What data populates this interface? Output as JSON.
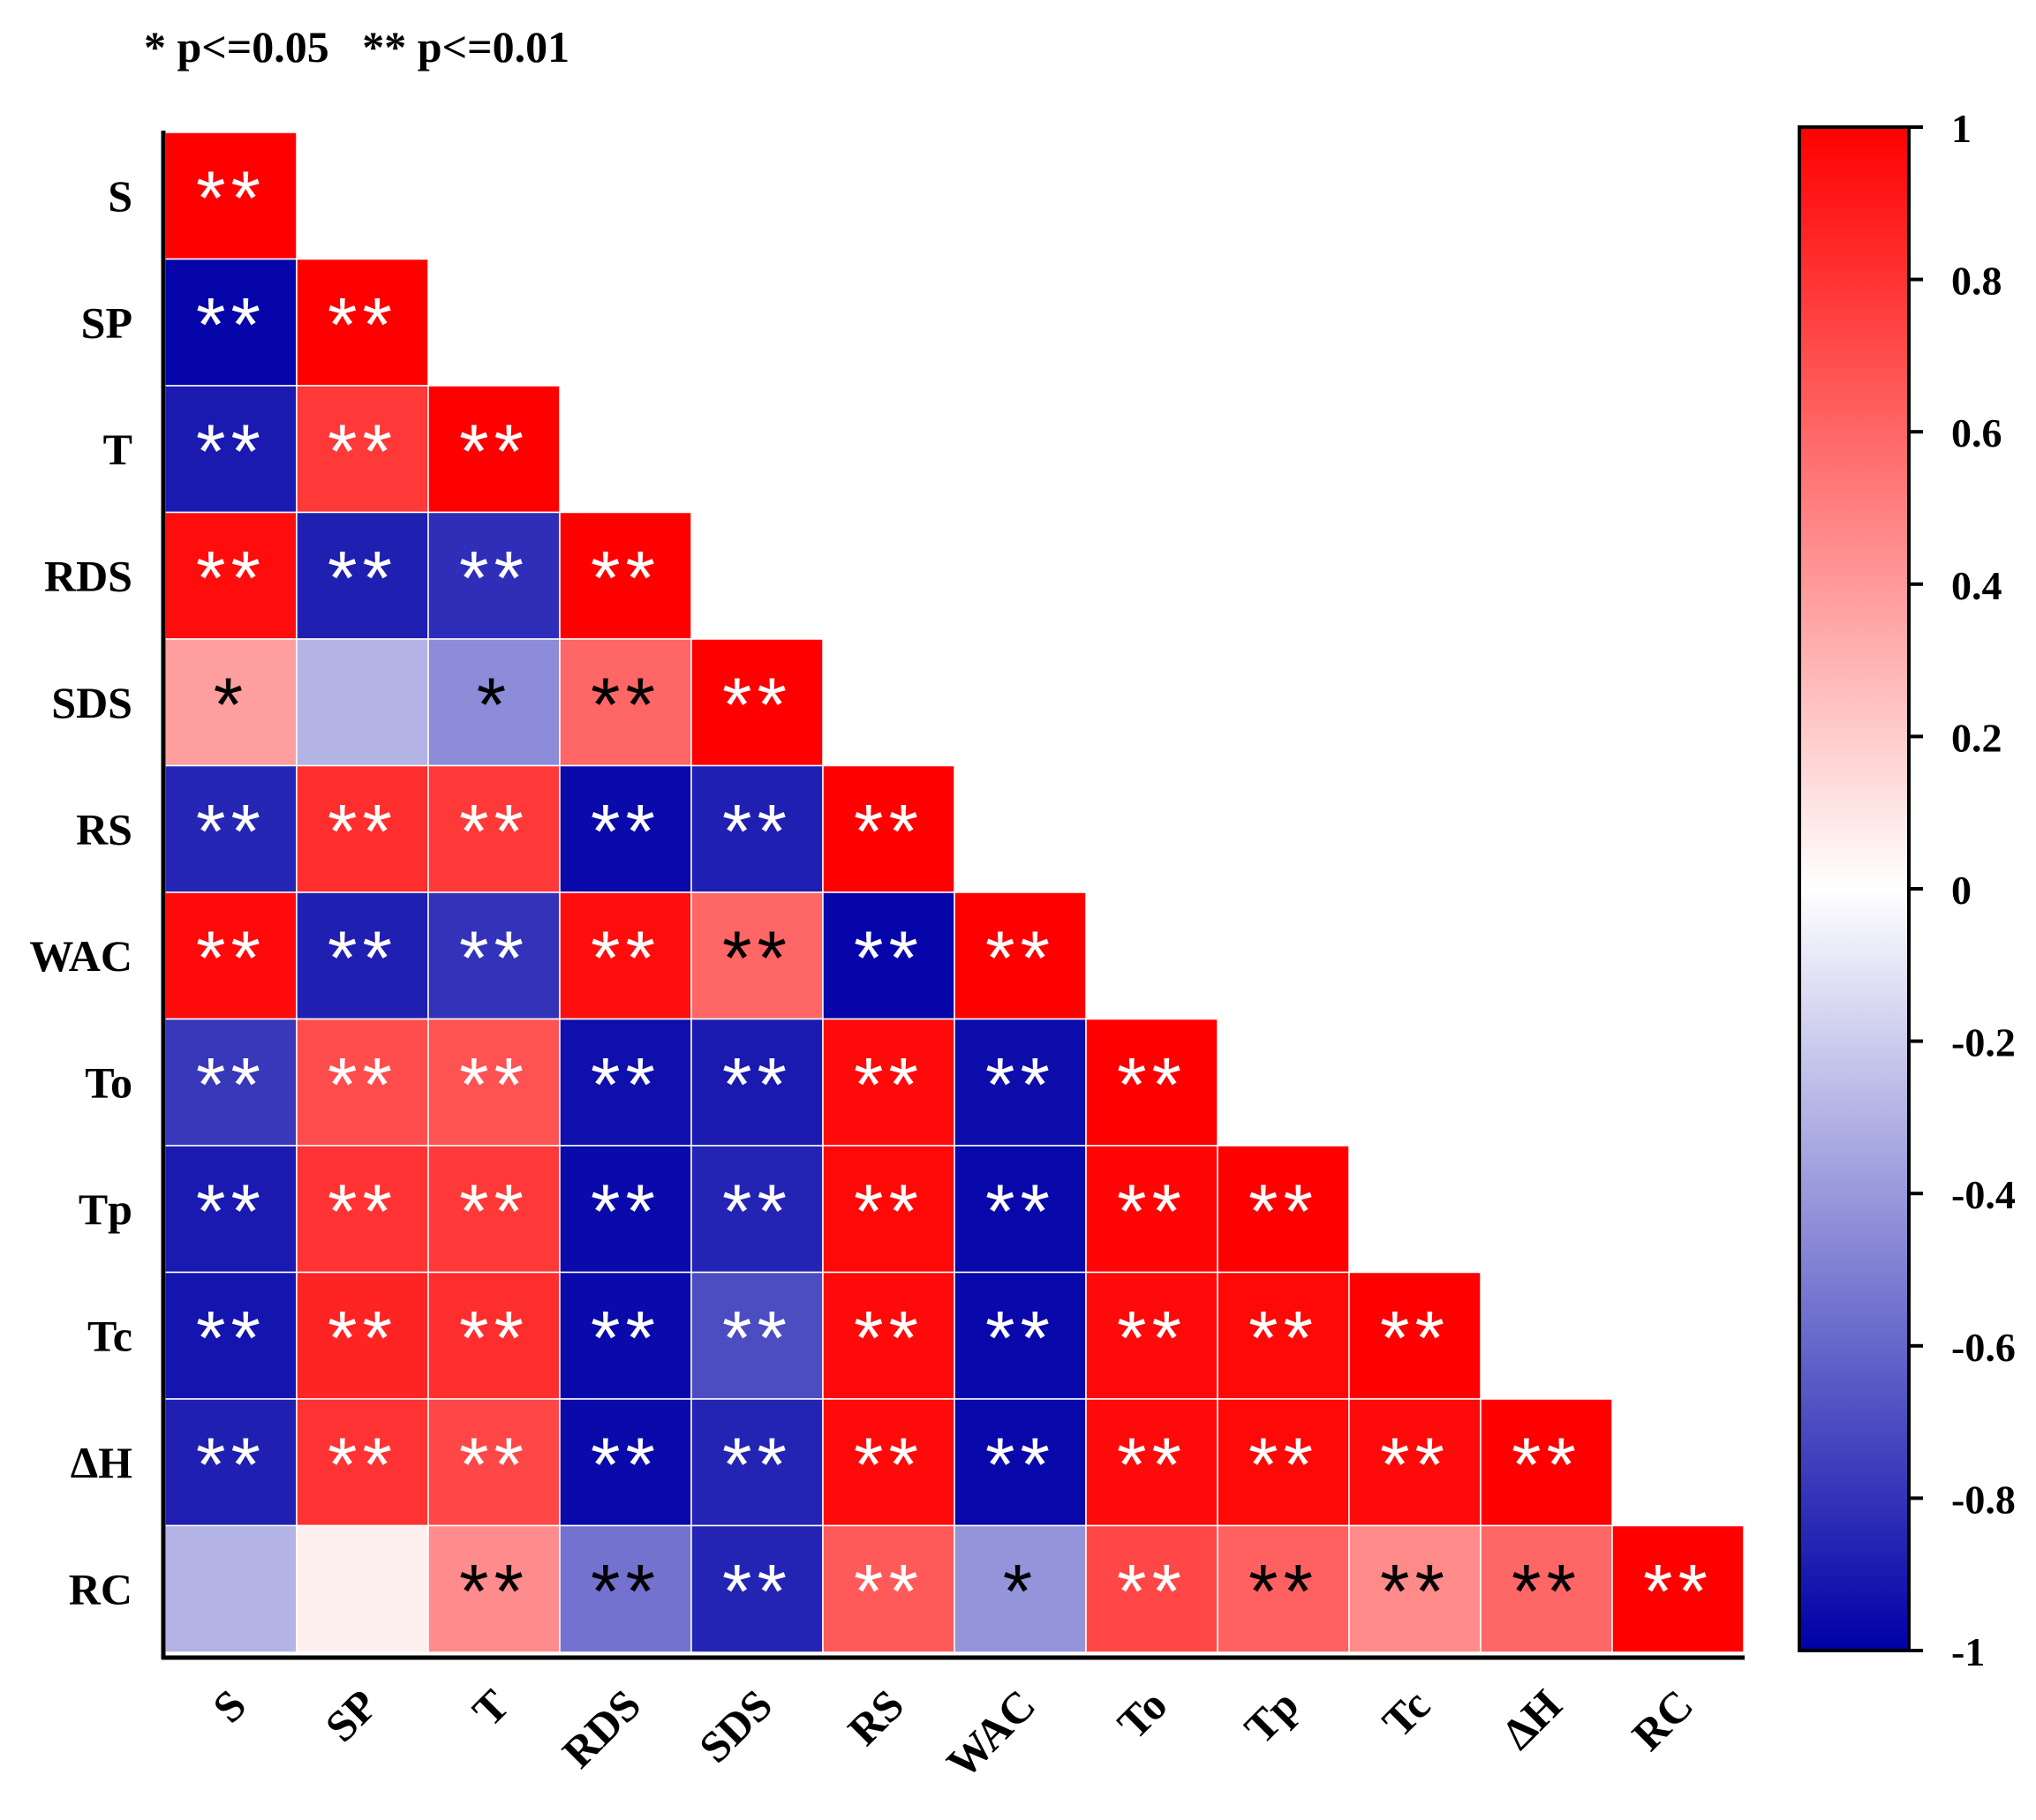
{
  "chart_data": {
    "type": "heatmap",
    "legend_note": "* p<=0.05   ** p<=0.01",
    "variables": [
      "S",
      "SP",
      "T",
      "RDS",
      "SDS",
      "RS",
      "WAC",
      "To",
      "Tp",
      "Tc",
      "ΔH",
      "RC"
    ],
    "colorbar": {
      "range": [
        -1,
        1
      ],
      "ticks": [
        "1",
        "0.8",
        "0.6",
        "0.4",
        "0.2",
        "0",
        "-0.2",
        "-0.4",
        "-0.6",
        "-0.8",
        "-1"
      ],
      "colors": {
        "negative": "#0000a8",
        "zero": "#ffffff",
        "positive": "#ff0000"
      }
    },
    "cells": [
      [
        {
          "r": 1.0,
          "sig": "**"
        }
      ],
      [
        {
          "r": -0.98,
          "sig": "**"
        },
        {
          "r": 1.0,
          "sig": "**"
        }
      ],
      [
        {
          "r": -0.9,
          "sig": "**"
        },
        {
          "r": 0.78,
          "sig": "**"
        },
        {
          "r": 1.0,
          "sig": "**"
        }
      ],
      [
        {
          "r": 0.95,
          "sig": "**"
        },
        {
          "r": -0.88,
          "sig": "**"
        },
        {
          "r": -0.82,
          "sig": "**"
        },
        {
          "r": 1.0,
          "sig": "**"
        }
      ],
      [
        {
          "r": 0.38,
          "sig": "*"
        },
        {
          "r": -0.3,
          "sig": ""
        },
        {
          "r": -0.45,
          "sig": "*"
        },
        {
          "r": 0.6,
          "sig": "**"
        },
        {
          "r": 1.0,
          "sig": "**"
        }
      ],
      [
        {
          "r": -0.85,
          "sig": "**"
        },
        {
          "r": 0.82,
          "sig": "**"
        },
        {
          "r": 0.78,
          "sig": "**"
        },
        {
          "r": -0.96,
          "sig": "**"
        },
        {
          "r": -0.88,
          "sig": "**"
        },
        {
          "r": 1.0,
          "sig": "**"
        }
      ],
      [
        {
          "r": 0.96,
          "sig": "**"
        },
        {
          "r": -0.88,
          "sig": "**"
        },
        {
          "r": -0.8,
          "sig": "**"
        },
        {
          "r": 0.95,
          "sig": "**"
        },
        {
          "r": 0.6,
          "sig": "**"
        },
        {
          "r": -0.98,
          "sig": "**"
        },
        {
          "r": 1.0,
          "sig": "**"
        }
      ],
      [
        {
          "r": -0.78,
          "sig": "**"
        },
        {
          "r": 0.7,
          "sig": "**"
        },
        {
          "r": 0.68,
          "sig": "**"
        },
        {
          "r": -0.94,
          "sig": "**"
        },
        {
          "r": -0.9,
          "sig": "**"
        },
        {
          "r": 0.96,
          "sig": "**"
        },
        {
          "r": -0.95,
          "sig": "**"
        },
        {
          "r": 1.0,
          "sig": "**"
        }
      ],
      [
        {
          "r": -0.9,
          "sig": "**"
        },
        {
          "r": 0.8,
          "sig": "**"
        },
        {
          "r": 0.78,
          "sig": "**"
        },
        {
          "r": -0.96,
          "sig": "**"
        },
        {
          "r": -0.86,
          "sig": "**"
        },
        {
          "r": 0.97,
          "sig": "**"
        },
        {
          "r": -0.97,
          "sig": "**"
        },
        {
          "r": 0.98,
          "sig": "**"
        },
        {
          "r": 1.0,
          "sig": "**"
        }
      ],
      [
        {
          "r": -0.92,
          "sig": "**"
        },
        {
          "r": 0.86,
          "sig": "**"
        },
        {
          "r": 0.82,
          "sig": "**"
        },
        {
          "r": -0.96,
          "sig": "**"
        },
        {
          "r": -0.7,
          "sig": "**"
        },
        {
          "r": 0.96,
          "sig": "**"
        },
        {
          "r": -0.97,
          "sig": "**"
        },
        {
          "r": 0.96,
          "sig": "**"
        },
        {
          "r": 0.97,
          "sig": "**"
        },
        {
          "r": 1.0,
          "sig": "**"
        }
      ],
      [
        {
          "r": -0.88,
          "sig": "**"
        },
        {
          "r": 0.8,
          "sig": "**"
        },
        {
          "r": 0.72,
          "sig": "**"
        },
        {
          "r": -0.96,
          "sig": "**"
        },
        {
          "r": -0.86,
          "sig": "**"
        },
        {
          "r": 0.96,
          "sig": "**"
        },
        {
          "r": -0.97,
          "sig": "**"
        },
        {
          "r": 0.96,
          "sig": "**"
        },
        {
          "r": 0.97,
          "sig": "**"
        },
        {
          "r": 0.96,
          "sig": "**"
        },
        {
          "r": 1.0,
          "sig": "**"
        }
      ],
      [
        {
          "r": -0.3,
          "sig": ""
        },
        {
          "r": 0.06,
          "sig": ""
        },
        {
          "r": 0.45,
          "sig": "**"
        },
        {
          "r": -0.55,
          "sig": "**"
        },
        {
          "r": -0.86,
          "sig": "**"
        },
        {
          "r": 0.65,
          "sig": "**"
        },
        {
          "r": -0.42,
          "sig": "*"
        },
        {
          "r": 0.72,
          "sig": "**"
        },
        {
          "r": 0.62,
          "sig": "**"
        },
        {
          "r": 0.46,
          "sig": "**"
        },
        {
          "r": 0.6,
          "sig": "**"
        },
        {
          "r": 1.0,
          "sig": "**"
        }
      ]
    ]
  }
}
